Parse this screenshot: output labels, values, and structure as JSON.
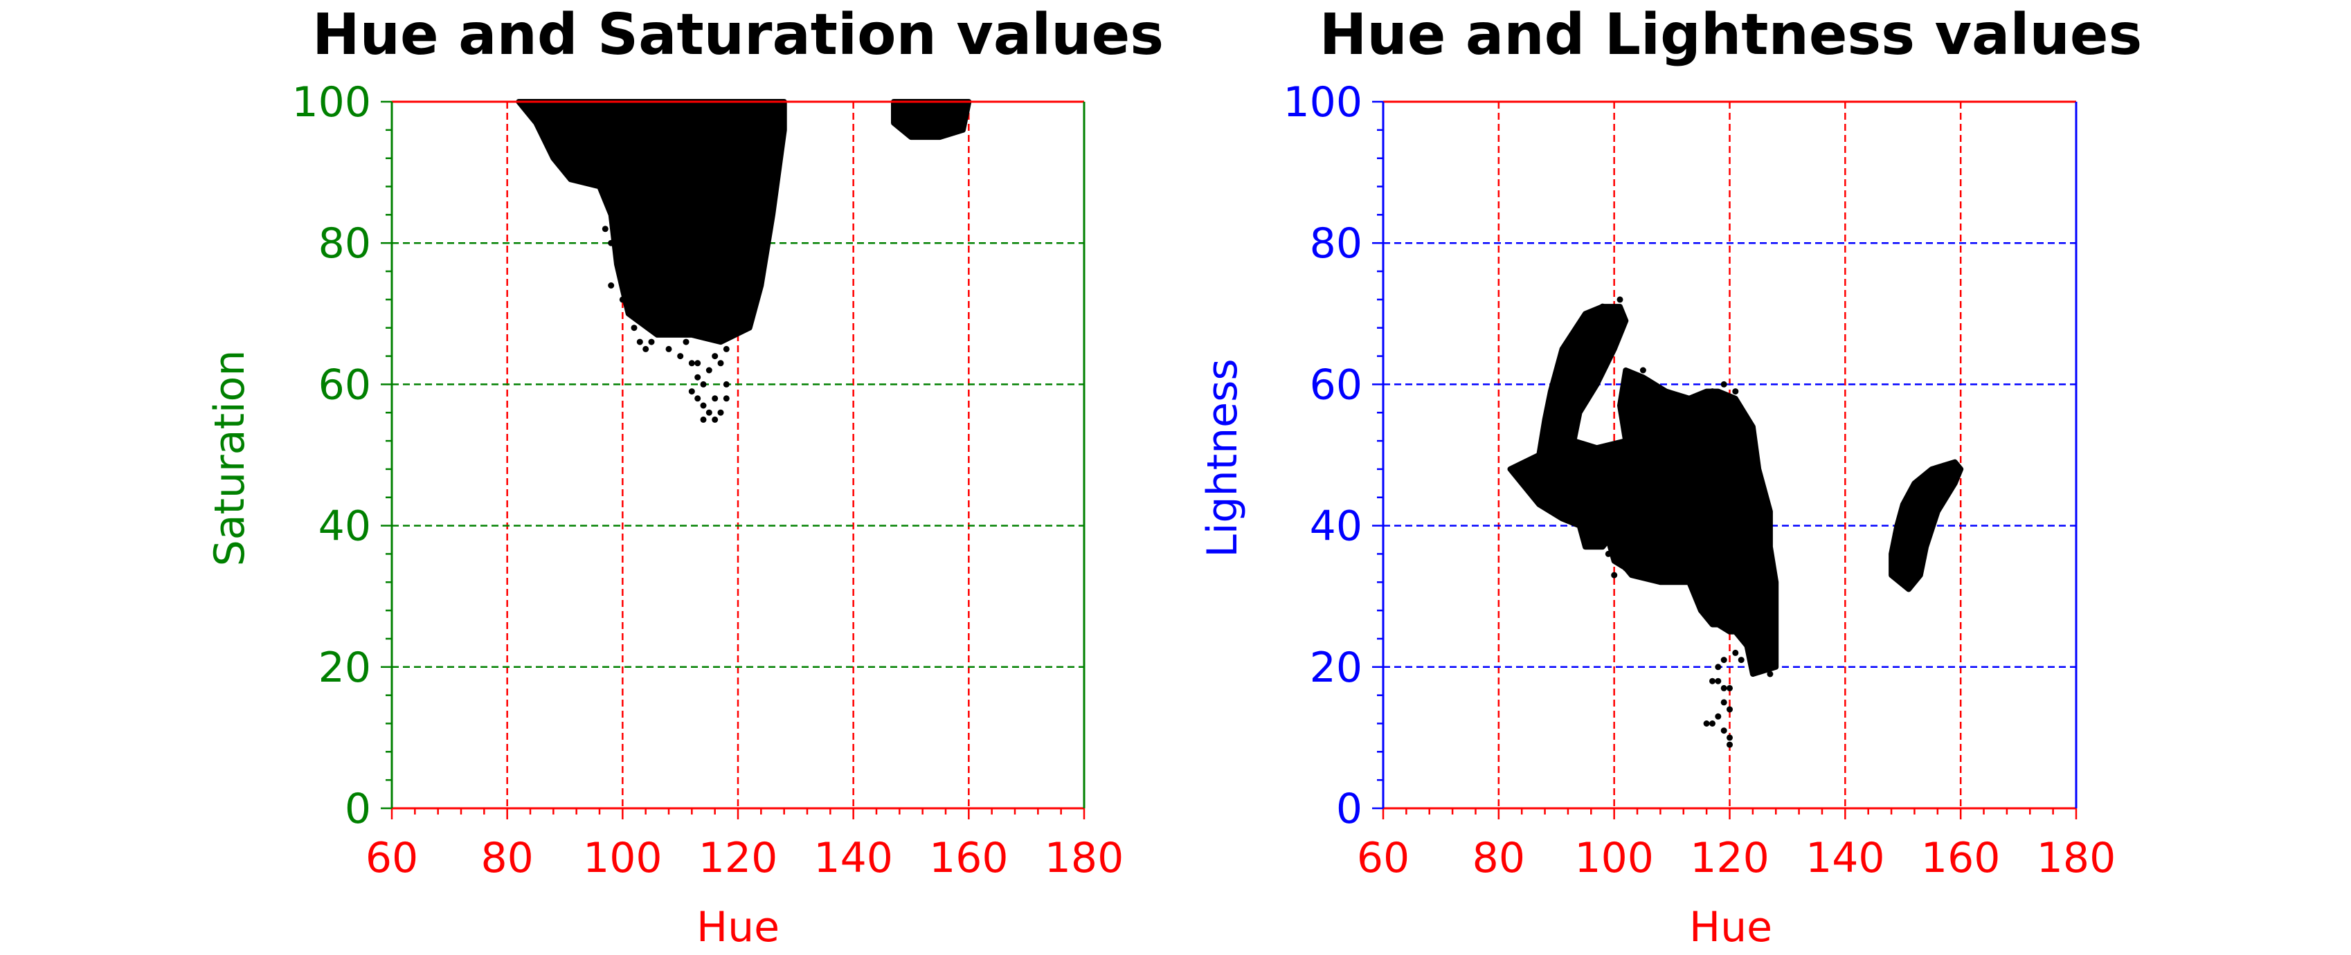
{
  "colors": {
    "x_axis": "#ff0000",
    "left_y_axis": "#008000",
    "right_y_axis": "#0000ff",
    "points": "#000000"
  },
  "chart_data": [
    {
      "type": "scatter",
      "title": "Hue and Saturation values",
      "xlabel": "Hue",
      "ylabel": "Saturation",
      "xlim": [
        60,
        180
      ],
      "ylim": [
        0,
        100
      ],
      "x_ticks": [
        "60",
        "80",
        "100",
        "120",
        "140",
        "160",
        "180"
      ],
      "y_ticks": [
        "0",
        "20",
        "40",
        "60",
        "80",
        "100"
      ],
      "grid": true,
      "x_gridlines": [
        80,
        100,
        120,
        140,
        160
      ],
      "y_gridlines": [
        20,
        40,
        60,
        80
      ],
      "series": [
        {
          "regions": [
            [
              [
                82,
                100
              ],
              [
                128,
                100
              ],
              [
                128,
                96
              ],
              [
                126,
                84
              ],
              [
                124,
                74
              ],
              [
                122,
                68
              ],
              [
                117,
                66
              ],
              [
                112,
                67
              ],
              [
                106,
                67
              ],
              [
                101,
                70
              ],
              [
                99,
                77
              ],
              [
                98,
                84
              ],
              [
                96,
                88
              ],
              [
                91,
                89
              ],
              [
                88,
                92
              ],
              [
                85,
                97
              ],
              [
                82,
                100
              ]
            ],
            [
              [
                147,
                100
              ],
              [
                160,
                100
              ],
              [
                159,
                96
              ],
              [
                155,
                95
              ],
              [
                150,
                95
              ],
              [
                147,
                97
              ],
              [
                147,
                100
              ]
            ]
          ],
          "scattered_points": [
            [
              99,
              78
            ],
            [
              98,
              74
            ],
            [
              100,
              72
            ],
            [
              102,
              68
            ],
            [
              103,
              66
            ],
            [
              104,
              65
            ],
            [
              110,
              64
            ],
            [
              112,
              63
            ],
            [
              113,
              61
            ],
            [
              114,
              60
            ],
            [
              113,
              58
            ],
            [
              114,
              57
            ],
            [
              115,
              56
            ],
            [
              116,
              55
            ],
            [
              117,
              56
            ],
            [
              118,
              58
            ],
            [
              115,
              62
            ],
            [
              117,
              63
            ],
            [
              118,
              65
            ],
            [
              116,
              64
            ],
            [
              111,
              66
            ],
            [
              108,
              65
            ],
            [
              105,
              66
            ],
            [
              112,
              59
            ],
            [
              116,
              58
            ],
            [
              114,
              55
            ],
            [
              118,
              60
            ],
            [
              113,
              63
            ],
            [
              98,
              80
            ],
            [
              97,
              82
            ]
          ]
        }
      ]
    },
    {
      "type": "scatter",
      "title": "Hue and Lightness values",
      "xlabel": "Hue",
      "ylabel": "Lightness",
      "xlim": [
        60,
        180
      ],
      "ylim": [
        0,
        100
      ],
      "x_ticks": [
        "60",
        "80",
        "100",
        "120",
        "140",
        "160",
        "180"
      ],
      "y_ticks": [
        "0",
        "20",
        "40",
        "60",
        "80",
        "100"
      ],
      "grid": true,
      "x_gridlines": [
        80,
        100,
        120,
        140,
        160
      ],
      "y_gridlines": [
        20,
        40,
        60,
        80
      ],
      "series": [
        {
          "regions": [
            [
              [
                82,
                48
              ],
              [
                87,
                50
              ],
              [
                88,
                55
              ],
              [
                89,
                59
              ],
              [
                91,
                65
              ],
              [
                95,
                70
              ],
              [
                98,
                71
              ],
              [
                101,
                71
              ],
              [
                102,
                69
              ],
              [
                100,
                65
              ],
              [
                97,
                60
              ],
              [
                94,
                56
              ],
              [
                93,
                52
              ],
              [
                97,
                51
              ],
              [
                102,
                52
              ],
              [
                105,
                51
              ],
              [
                108,
                50
              ],
              [
                104,
                48
              ],
              [
                102,
                52
              ],
              [
                101,
                57
              ],
              [
                102,
                62
              ],
              [
                105,
                61
              ],
              [
                109,
                59
              ],
              [
                113,
                58
              ],
              [
                116,
                59
              ],
              [
                118,
                59
              ],
              [
                121,
                58
              ],
              [
                124,
                54
              ],
              [
                125,
                48
              ],
              [
                127,
                42
              ],
              [
                127,
                37
              ],
              [
                128,
                32
              ],
              [
                128,
                25
              ],
              [
                128,
                20
              ],
              [
                124,
                19
              ],
              [
                123,
                23
              ],
              [
                121,
                25
              ],
              [
                120,
                25
              ],
              [
                118,
                26
              ],
              [
                117,
                26
              ],
              [
                115,
                28
              ],
              [
                113,
                32
              ],
              [
                108,
                32
              ],
              [
                103,
                33
              ],
              [
                102,
                34
              ],
              [
                100,
                35
              ],
              [
                99,
                38
              ],
              [
                98,
                37
              ],
              [
                95,
                37
              ],
              [
                94,
                40
              ],
              [
                91,
                41
              ],
              [
                87,
                43
              ],
              [
                84,
                46
              ],
              [
                82,
                48
              ]
            ],
            [
              [
                148,
                33
              ],
              [
                151,
                31
              ],
              [
                153,
                33
              ],
              [
                154,
                37
              ],
              [
                156,
                42
              ],
              [
                159,
                46
              ],
              [
                160,
                48
              ],
              [
                159,
                49
              ],
              [
                155,
                48
              ],
              [
                152,
                46
              ],
              [
                150,
                43
              ],
              [
                149,
                40
              ],
              [
                148,
                36
              ],
              [
                148,
                33
              ]
            ]
          ],
          "scattered_points": [
            [
              118,
              20
            ],
            [
              118,
              18
            ],
            [
              119,
              17
            ],
            [
              119,
              15
            ],
            [
              118,
              13
            ],
            [
              117,
              12
            ],
            [
              116,
              12
            ],
            [
              119,
              11
            ],
            [
              120,
              10
            ],
            [
              120,
              9
            ],
            [
              120,
              14
            ],
            [
              120,
              17
            ],
            [
              119,
              21
            ],
            [
              117,
              18
            ],
            [
              121,
              22
            ],
            [
              115,
              35
            ],
            [
              112,
              33
            ],
            [
              106,
              33
            ],
            [
              102,
              34
            ],
            [
              99,
              36
            ],
            [
              100,
              33
            ],
            [
              96,
              38
            ],
            [
              98,
              39
            ],
            [
              103,
              61
            ],
            [
              105,
              62
            ],
            [
              117,
              59
            ],
            [
              119,
              60
            ],
            [
              121,
              59
            ],
            [
              126,
              26
            ],
            [
              124,
              28
            ],
            [
              125,
              20
            ],
            [
              122,
              21
            ],
            [
              127,
              19
            ],
            [
              98,
              71
            ],
            [
              101,
              72
            ]
          ]
        }
      ]
    }
  ]
}
